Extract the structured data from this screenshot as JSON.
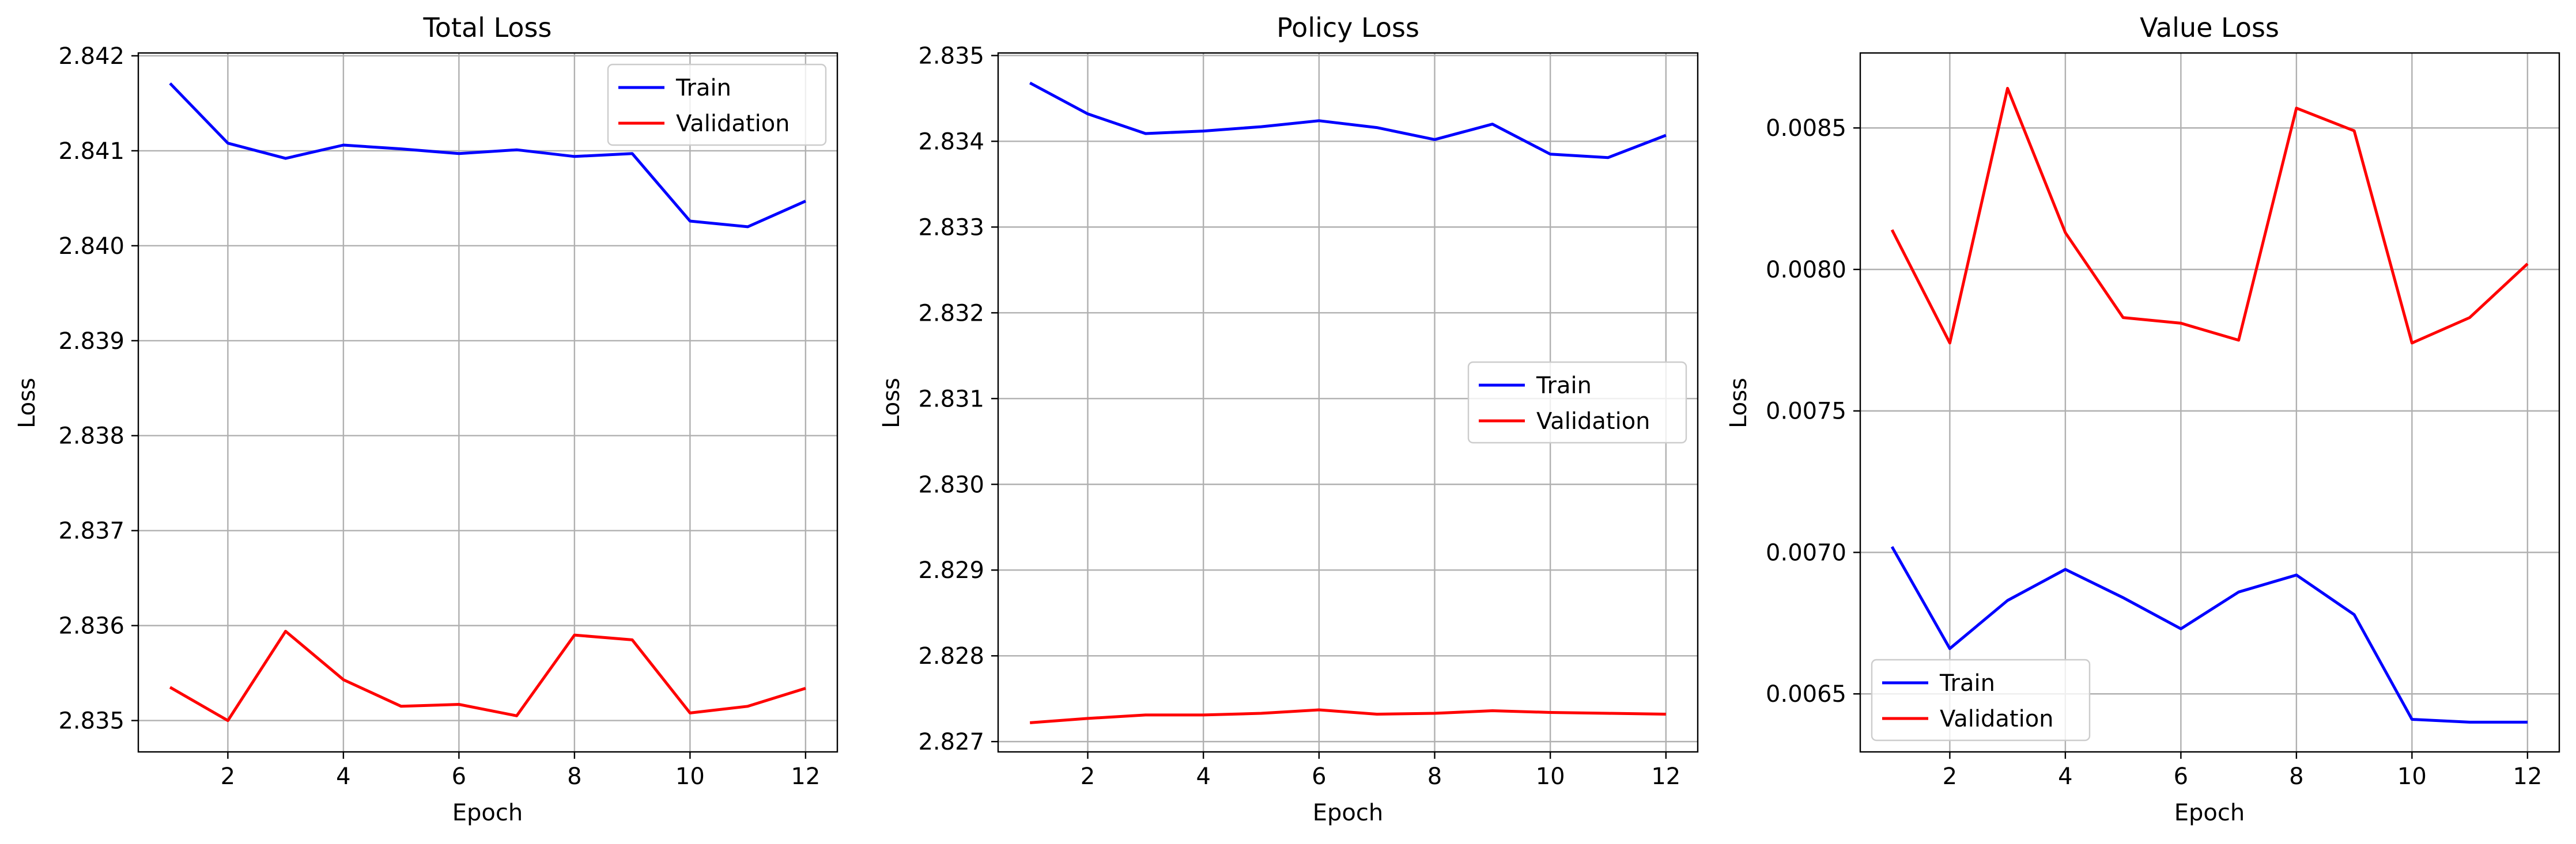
{
  "figure": {
    "panels": [
      {
        "title": "Total Loss",
        "xlabel": "Epoch",
        "ylabel": "Loss",
        "legend_loc": "upper-right"
      },
      {
        "title": "Policy Loss",
        "xlabel": "Epoch",
        "ylabel": "Loss",
        "legend_loc": "center-right"
      },
      {
        "title": "Value Loss",
        "xlabel": "Epoch",
        "ylabel": "Loss",
        "legend_loc": "lower-left"
      }
    ]
  },
  "chart_data": [
    {
      "type": "line",
      "title": "Total Loss",
      "xlabel": "Epoch",
      "ylabel": "Loss",
      "grid": true,
      "legend": "upper-right",
      "x": [
        1,
        2,
        3,
        4,
        5,
        6,
        7,
        8,
        9,
        10,
        11,
        12
      ],
      "xticks": [
        2,
        4,
        6,
        8,
        10,
        12
      ],
      "yticks": [
        2.835,
        2.836,
        2.837,
        2.838,
        2.839,
        2.84,
        2.841,
        2.842
      ],
      "ytick_labels": [
        "2.835",
        "2.836",
        "2.837",
        "2.838",
        "2.839",
        "2.840",
        "2.841",
        "2.842"
      ],
      "xlim": [
        0.45,
        12.55
      ],
      "ylim": [
        2.83467,
        2.84203
      ],
      "series": [
        {
          "name": "Train",
          "color": "#0000ff",
          "values": [
            2.84171,
            2.84108,
            2.84092,
            2.84106,
            2.84102,
            2.84097,
            2.84101,
            2.84094,
            2.84097,
            2.84026,
            2.8402,
            2.84047
          ]
        },
        {
          "name": "Validation",
          "color": "#ff0000",
          "values": [
            2.83535,
            2.835,
            2.83594,
            2.83543,
            2.83515,
            2.83517,
            2.83505,
            2.8359,
            2.83585,
            2.83508,
            2.83515,
            2.83534
          ]
        }
      ]
    },
    {
      "type": "line",
      "title": "Policy Loss",
      "xlabel": "Epoch",
      "ylabel": "Loss",
      "grid": true,
      "legend": "center-right",
      "x": [
        1,
        2,
        3,
        4,
        5,
        6,
        7,
        8,
        9,
        10,
        11,
        12
      ],
      "xticks": [
        2,
        4,
        6,
        8,
        10,
        12
      ],
      "yticks": [
        2.827,
        2.828,
        2.829,
        2.83,
        2.831,
        2.832,
        2.833,
        2.834,
        2.835
      ],
      "ytick_labels": [
        "2.827",
        "2.828",
        "2.829",
        "2.830",
        "2.831",
        "2.832",
        "2.833",
        "2.834",
        "2.835"
      ],
      "xlim": [
        0.45,
        12.55
      ],
      "ylim": [
        2.82688,
        2.83503
      ],
      "series": [
        {
          "name": "Train",
          "color": "#0000ff",
          "values": [
            2.83468,
            2.83432,
            2.83409,
            2.83412,
            2.83417,
            2.83424,
            2.83416,
            2.83402,
            2.8342,
            2.83385,
            2.83381,
            2.83407
          ]
        },
        {
          "name": "Validation",
          "color": "#ff0000",
          "values": [
            2.82722,
            2.82727,
            2.82731,
            2.82731,
            2.82733,
            2.82737,
            2.82732,
            2.82733,
            2.82736,
            2.82734,
            2.82733,
            2.82732
          ]
        }
      ]
    },
    {
      "type": "line",
      "title": "Value Loss",
      "xlabel": "Epoch",
      "ylabel": "Loss",
      "grid": true,
      "legend": "lower-left",
      "x": [
        1,
        2,
        3,
        4,
        5,
        6,
        7,
        8,
        9,
        10,
        11,
        12
      ],
      "xticks": [
        2,
        4,
        6,
        8,
        10,
        12
      ],
      "yticks": [
        0.0065,
        0.007,
        0.0075,
        0.008,
        0.0085
      ],
      "ytick_labels": [
        "0.0065",
        "0.0070",
        "0.0075",
        "0.0080",
        "0.0085"
      ],
      "xlim": [
        0.45,
        12.55
      ],
      "ylim": [
        0.006295,
        0.008765
      ],
      "series": [
        {
          "name": "Train",
          "color": "#0000ff",
          "values": [
            0.00702,
            0.00666,
            0.00683,
            0.00694,
            0.00684,
            0.00673,
            0.00686,
            0.00692,
            0.00678,
            0.00641,
            0.0064,
            0.0064
          ]
        },
        {
          "name": "Validation",
          "color": "#ff0000",
          "values": [
            0.00814,
            0.00774,
            0.00864,
            0.00813,
            0.00783,
            0.00781,
            0.00775,
            0.00857,
            0.00849,
            0.00774,
            0.00783,
            0.00802
          ]
        }
      ]
    }
  ]
}
